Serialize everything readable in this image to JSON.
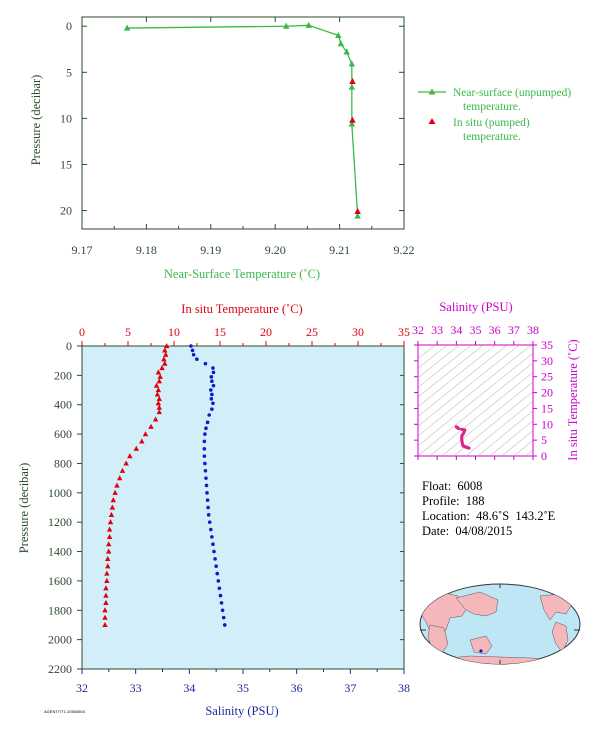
{
  "colors": {
    "green": "#3cb84a",
    "red": "#e0000f",
    "blue": "#0a1ccc",
    "magenta": "#cc00cc",
    "navy": "#1a2a99",
    "axisDark": "#2e4a2e",
    "panelFill": "#d2eef8",
    "landFill": "#f4b8bc",
    "oceanFill": "#bfe6f4"
  },
  "chart_data": [
    {
      "type": "line",
      "xlabel": "Near-Surface Temperature (˚C)",
      "ylabel": "Pressure (decibar)",
      "xlim": [
        9.17,
        9.22
      ],
      "ylim": [
        22,
        -1
      ],
      "xticks": [
        "9.17",
        "9.18",
        "9.19",
        "9.20",
        "9.21",
        "9.22"
      ],
      "yticks": [
        "0",
        "5",
        "10",
        "15",
        "20"
      ],
      "series": [
        {
          "name": "Near-surface (unpumped) temperature.",
          "legend_line2": "temperature.",
          "legend_line1": "Near-surface (unpumped)",
          "points": [
            [
              9.177,
              0.2
            ],
            [
              9.2017,
              0.0
            ],
            [
              9.2052,
              -0.1
            ],
            [
              9.2098,
              1.0
            ],
            [
              9.2102,
              1.9
            ],
            [
              9.2111,
              2.8
            ],
            [
              9.2119,
              4.1
            ],
            [
              9.2119,
              6.6
            ],
            [
              9.2119,
              10.6
            ],
            [
              9.2128,
              20.6
            ]
          ]
        },
        {
          "name": "In situ (pumped) temperature.",
          "legend_line1": "In situ (pumped)",
          "legend_line2": "temperature.",
          "points": [
            [
              9.212,
              6.0
            ],
            [
              9.212,
              10.2
            ],
            [
              9.2128,
              20.1
            ]
          ]
        }
      ]
    },
    {
      "type": "scatter",
      "top_label": "In situ Temperature (˚C)",
      "bottom_label": "Salinity (PSU)",
      "ylabel": "Pressure (decibar)",
      "temp_lim": [
        0,
        35
      ],
      "sal_lim": [
        32,
        38
      ],
      "ylim": [
        2200,
        0
      ],
      "temp_ticks": [
        "0",
        "5",
        "10",
        "15",
        "20",
        "25",
        "30",
        "35"
      ],
      "sal_ticks": [
        "32",
        "33",
        "34",
        "35",
        "36",
        "37",
        "38"
      ],
      "yticks": [
        "0",
        "200",
        "400",
        "600",
        "800",
        "1000",
        "1200",
        "1400",
        "1600",
        "1800",
        "2000",
        "2200"
      ],
      "temperature": [
        [
          9.2,
          0
        ],
        [
          9.0,
          30
        ],
        [
          9.1,
          60
        ],
        [
          8.9,
          90
        ],
        [
          9.0,
          120
        ],
        [
          8.7,
          150
        ],
        [
          8.3,
          180
        ],
        [
          8.5,
          210
        ],
        [
          8.4,
          240
        ],
        [
          8.1,
          270
        ],
        [
          8.3,
          300
        ],
        [
          8.2,
          330
        ],
        [
          8.4,
          360
        ],
        [
          8.3,
          390
        ],
        [
          8.4,
          420
        ],
        [
          8.4,
          450
        ],
        [
          8.0,
          500
        ],
        [
          7.5,
          550
        ],
        [
          6.9,
          600
        ],
        [
          6.5,
          650
        ],
        [
          5.9,
          700
        ],
        [
          5.2,
          750
        ],
        [
          4.8,
          800
        ],
        [
          4.4,
          850
        ],
        [
          4.1,
          900
        ],
        [
          3.8,
          950
        ],
        [
          3.6,
          1000
        ],
        [
          3.4,
          1050
        ],
        [
          3.3,
          1100
        ],
        [
          3.2,
          1150
        ],
        [
          3.1,
          1200
        ],
        [
          3.0,
          1250
        ],
        [
          3.0,
          1300
        ],
        [
          2.9,
          1350
        ],
        [
          2.9,
          1400
        ],
        [
          2.8,
          1450
        ],
        [
          2.8,
          1500
        ],
        [
          2.7,
          1550
        ],
        [
          2.7,
          1600
        ],
        [
          2.6,
          1650
        ],
        [
          2.6,
          1700
        ],
        [
          2.6,
          1750
        ],
        [
          2.5,
          1800
        ],
        [
          2.5,
          1850
        ],
        [
          2.5,
          1900
        ]
      ],
      "salinity": [
        [
          34.03,
          0
        ],
        [
          34.06,
          30
        ],
        [
          34.08,
          60
        ],
        [
          34.14,
          90
        ],
        [
          34.3,
          120
        ],
        [
          34.44,
          150
        ],
        [
          34.45,
          180
        ],
        [
          34.41,
          210
        ],
        [
          34.42,
          240
        ],
        [
          34.45,
          270
        ],
        [
          34.4,
          300
        ],
        [
          34.42,
          330
        ],
        [
          34.41,
          360
        ],
        [
          34.44,
          390
        ],
        [
          34.42,
          430
        ],
        [
          34.37,
          470
        ],
        [
          34.34,
          520
        ],
        [
          34.31,
          560
        ],
        [
          34.29,
          600
        ],
        [
          34.28,
          650
        ],
        [
          34.28,
          700
        ],
        [
          34.28,
          750
        ],
        [
          34.29,
          800
        ],
        [
          34.3,
          850
        ],
        [
          34.31,
          900
        ],
        [
          34.32,
          950
        ],
        [
          34.33,
          1000
        ],
        [
          34.34,
          1050
        ],
        [
          34.35,
          1100
        ],
        [
          34.36,
          1150
        ],
        [
          34.38,
          1200
        ],
        [
          34.4,
          1250
        ],
        [
          34.42,
          1300
        ],
        [
          34.44,
          1350
        ],
        [
          34.46,
          1400
        ],
        [
          34.48,
          1450
        ],
        [
          34.5,
          1500
        ],
        [
          34.52,
          1550
        ],
        [
          34.54,
          1600
        ],
        [
          34.56,
          1650
        ],
        [
          34.58,
          1700
        ],
        [
          34.6,
          1750
        ],
        [
          34.62,
          1800
        ],
        [
          34.64,
          1850
        ],
        [
          34.66,
          1900
        ]
      ]
    },
    {
      "type": "scatter",
      "top_label": "Salinity (PSU)",
      "right_label": "In situ Temperature (˚C)",
      "sal_lim": [
        32,
        38
      ],
      "temp_lim": [
        0,
        35
      ],
      "sal_ticks": [
        "32",
        "33",
        "34",
        "35",
        "36",
        "37",
        "38"
      ],
      "temp_ticks": [
        "0",
        "5",
        "10",
        "15",
        "20",
        "25",
        "30",
        "35"
      ],
      "ts_points": [
        [
          34.0,
          9.2
        ],
        [
          34.05,
          9.0
        ],
        [
          34.1,
          8.7
        ],
        [
          34.3,
          8.4
        ],
        [
          34.44,
          8.2
        ],
        [
          34.42,
          8.0
        ],
        [
          34.4,
          7.5
        ],
        [
          34.35,
          6.9
        ],
        [
          34.3,
          6.5
        ],
        [
          34.28,
          5.9
        ],
        [
          34.28,
          5.2
        ],
        [
          34.29,
          4.8
        ],
        [
          34.31,
          4.1
        ],
        [
          34.33,
          3.6
        ],
        [
          34.35,
          3.3
        ],
        [
          34.38,
          3.1
        ],
        [
          34.42,
          3.0
        ],
        [
          34.46,
          2.9
        ],
        [
          34.5,
          2.8
        ],
        [
          34.55,
          2.7
        ],
        [
          34.6,
          2.6
        ],
        [
          34.66,
          2.5
        ]
      ]
    }
  ],
  "info": {
    "float": "Float:  6008",
    "profile": "Profile:  188",
    "location": "Location:  48.6˚S  143.2˚E",
    "date": "Date:  04/08/2015"
  },
  "footer_code": "AGENT/TT1 20500604"
}
